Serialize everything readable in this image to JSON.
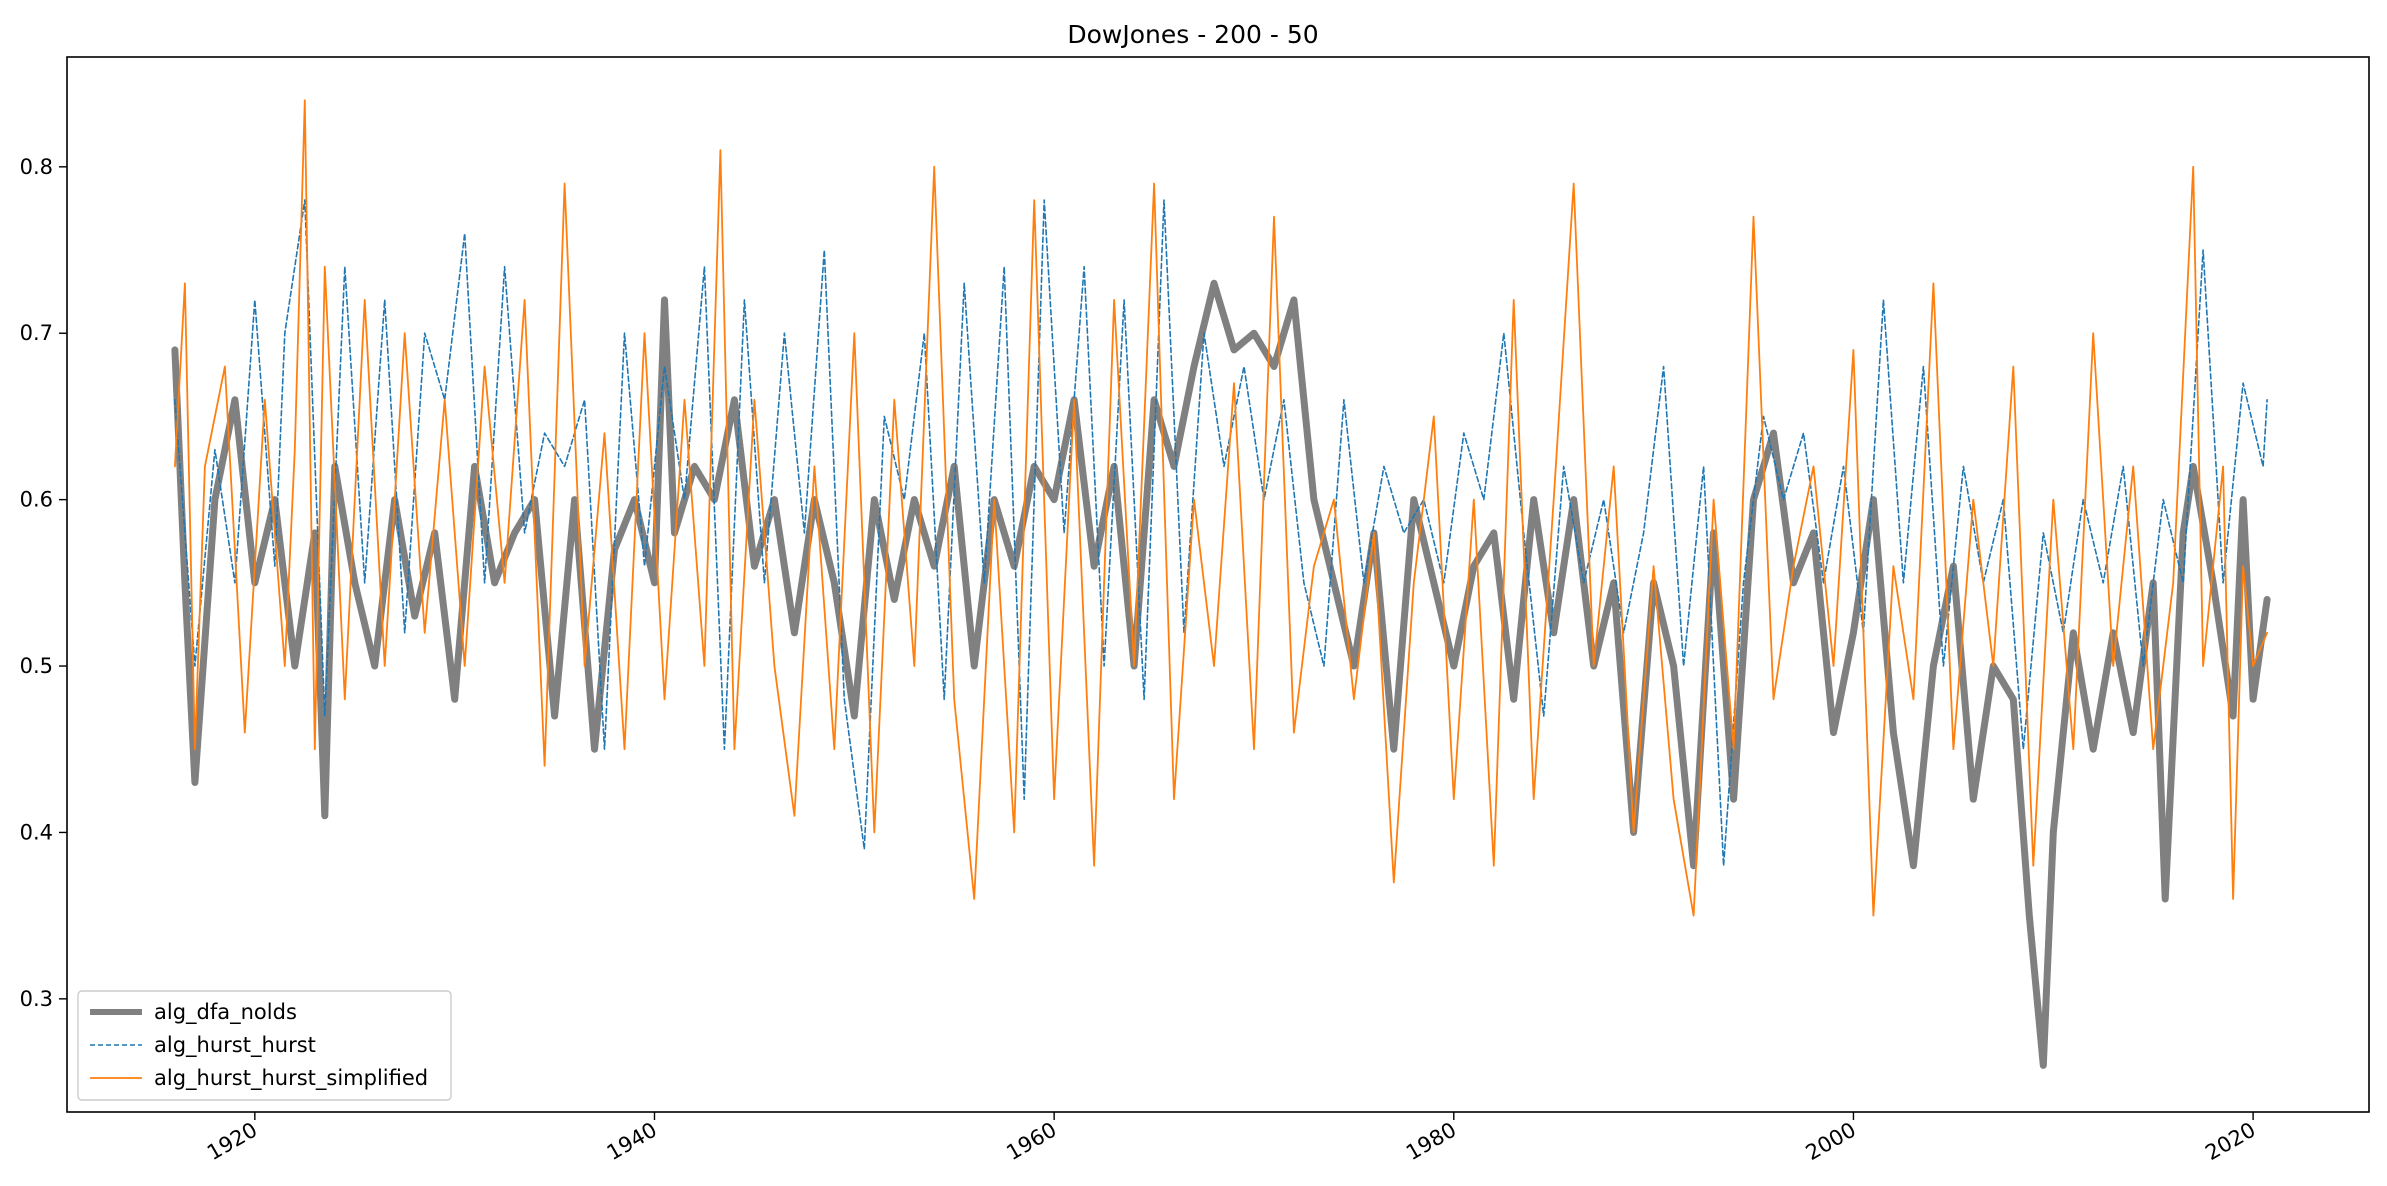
{
  "chart_data": {
    "type": "line",
    "title": "DowJones - 200 - 50",
    "xlabel": "",
    "ylabel": "",
    "xlim": [
      1910.6,
      2025.8
    ],
    "ylim": [
      0.232,
      0.866
    ],
    "x_ticks": [
      1920,
      1940,
      1960,
      1980,
      2000,
      2020
    ],
    "x_tick_labels": [
      "1920",
      "1940",
      "1960",
      "1980",
      "2000",
      "2020"
    ],
    "y_ticks": [
      0.3,
      0.4,
      0.5,
      0.6,
      0.7,
      0.8
    ],
    "y_tick_labels": [
      "0.3",
      "0.4",
      "0.5",
      "0.6",
      "0.7",
      "0.8"
    ],
    "grid": false,
    "legend": {
      "placement": "lower-left"
    },
    "series": [
      {
        "name": "alg_dfa_nolds",
        "color": "#808080",
        "style": "solid-thick",
        "x": [
          1916.0,
          1916.5,
          1917.0,
          1918.0,
          1919.0,
          1920.0,
          1921.0,
          1922.0,
          1923.0,
          1923.5,
          1924.0,
          1925.0,
          1926.0,
          1927.0,
          1928.0,
          1929.0,
          1930.0,
          1931.0,
          1932.0,
          1933.0,
          1934.0,
          1935.0,
          1936.0,
          1937.0,
          1938.0,
          1939.0,
          1940.0,
          1940.5,
          1941.0,
          1942.0,
          1943.0,
          1944.0,
          1945.0,
          1946.0,
          1947.0,
          1948.0,
          1949.0,
          1950.0,
          1951.0,
          1952.0,
          1953.0,
          1954.0,
          1955.0,
          1956.0,
          1957.0,
          1958.0,
          1959.0,
          1960.0,
          1961.0,
          1962.0,
          1963.0,
          1964.0,
          1965.0,
          1966.0,
          1967.0,
          1968.0,
          1969.0,
          1970.0,
          1971.0,
          1972.0,
          1973.0,
          1974.0,
          1975.0,
          1976.0,
          1977.0,
          1978.0,
          1979.0,
          1980.0,
          1981.0,
          1982.0,
          1983.0,
          1984.0,
          1985.0,
          1986.0,
          1987.0,
          1988.0,
          1989.0,
          1990.0,
          1991.0,
          1992.0,
          1993.0,
          1994.0,
          1995.0,
          1996.0,
          1997.0,
          1998.0,
          1999.0,
          2000.0,
          2001.0,
          2002.0,
          2003.0,
          2004.0,
          2005.0,
          2006.0,
          2007.0,
          2008.0,
          2008.8,
          2009.5,
          2010.0,
          2011.0,
          2012.0,
          2013.0,
          2014.0,
          2015.0,
          2015.6,
          2016.5,
          2017.0,
          2018.0,
          2019.0,
          2019.5,
          2020.0,
          2020.7
        ],
        "values": [
          0.69,
          0.55,
          0.43,
          0.6,
          0.66,
          0.55,
          0.6,
          0.5,
          0.58,
          0.41,
          0.62,
          0.55,
          0.5,
          0.6,
          0.53,
          0.58,
          0.48,
          0.62,
          0.55,
          0.58,
          0.6,
          0.47,
          0.6,
          0.45,
          0.57,
          0.6,
          0.55,
          0.72,
          0.58,
          0.62,
          0.6,
          0.66,
          0.56,
          0.6,
          0.52,
          0.6,
          0.55,
          0.47,
          0.6,
          0.54,
          0.6,
          0.56,
          0.62,
          0.5,
          0.6,
          0.56,
          0.62,
          0.6,
          0.66,
          0.56,
          0.62,
          0.5,
          0.66,
          0.62,
          0.68,
          0.73,
          0.69,
          0.7,
          0.68,
          0.72,
          0.6,
          0.55,
          0.5,
          0.58,
          0.45,
          0.6,
          0.55,
          0.5,
          0.56,
          0.58,
          0.48,
          0.6,
          0.52,
          0.6,
          0.5,
          0.55,
          0.4,
          0.55,
          0.5,
          0.38,
          0.58,
          0.42,
          0.6,
          0.64,
          0.55,
          0.58,
          0.46,
          0.52,
          0.6,
          0.46,
          0.38,
          0.5,
          0.56,
          0.42,
          0.5,
          0.48,
          0.35,
          0.26,
          0.4,
          0.52,
          0.45,
          0.52,
          0.46,
          0.55,
          0.36,
          0.58,
          0.62,
          0.55,
          0.47,
          0.6,
          0.48,
          0.54
        ]
      },
      {
        "name": "alg_hurst_hurst",
        "color": "#1f77b4",
        "style": "dashed",
        "x": [
          1916.0,
          1917.0,
          1918.0,
          1919.0,
          1920.0,
          1921.0,
          1921.5,
          1922.5,
          1923.5,
          1924.5,
          1925.5,
          1926.5,
          1927.5,
          1928.5,
          1929.5,
          1930.5,
          1931.5,
          1932.5,
          1933.5,
          1934.5,
          1935.5,
          1936.5,
          1937.5,
          1938.5,
          1939.5,
          1940.5,
          1941.5,
          1942.5,
          1943.5,
          1944.5,
          1945.5,
          1946.5,
          1947.5,
          1948.5,
          1949.5,
          1950.5,
          1951.5,
          1952.5,
          1953.5,
          1954.5,
          1955.5,
          1956.5,
          1957.5,
          1958.5,
          1959.5,
          1960.5,
          1961.5,
          1962.5,
          1963.5,
          1964.5,
          1965.5,
          1966.5,
          1967.5,
          1968.5,
          1969.5,
          1970.5,
          1971.5,
          1972.5,
          1973.5,
          1974.5,
          1975.5,
          1976.5,
          1977.5,
          1978.5,
          1979.5,
          1980.5,
          1981.5,
          1982.5,
          1983.5,
          1984.5,
          1985.5,
          1986.5,
          1987.5,
          1988.5,
          1989.5,
          1990.5,
          1991.5,
          1992.5,
          1993.5,
          1994.5,
          1995.5,
          1996.5,
          1997.5,
          1998.5,
          1999.5,
          2000.5,
          2001.5,
          2002.5,
          2003.5,
          2004.5,
          2005.5,
          2006.5,
          2007.5,
          2008.5,
          2009.5,
          2010.5,
          2011.5,
          2012.5,
          2013.5,
          2014.5,
          2015.5,
          2016.5,
          2017.5,
          2018.5,
          2019.5,
          2020.5,
          2020.7
        ],
        "values": [
          0.66,
          0.5,
          0.63,
          0.55,
          0.72,
          0.56,
          0.7,
          0.78,
          0.47,
          0.74,
          0.55,
          0.72,
          0.52,
          0.7,
          0.66,
          0.76,
          0.55,
          0.74,
          0.58,
          0.64,
          0.62,
          0.66,
          0.45,
          0.7,
          0.56,
          0.68,
          0.6,
          0.74,
          0.45,
          0.72,
          0.55,
          0.7,
          0.58,
          0.75,
          0.48,
          0.39,
          0.65,
          0.6,
          0.7,
          0.48,
          0.73,
          0.55,
          0.74,
          0.42,
          0.78,
          0.58,
          0.74,
          0.5,
          0.72,
          0.48,
          0.78,
          0.52,
          0.7,
          0.62,
          0.68,
          0.6,
          0.66,
          0.55,
          0.5,
          0.66,
          0.55,
          0.62,
          0.58,
          0.6,
          0.55,
          0.64,
          0.6,
          0.7,
          0.58,
          0.47,
          0.62,
          0.55,
          0.6,
          0.52,
          0.58,
          0.68,
          0.5,
          0.62,
          0.38,
          0.55,
          0.65,
          0.6,
          0.64,
          0.55,
          0.62,
          0.52,
          0.72,
          0.55,
          0.68,
          0.5,
          0.62,
          0.55,
          0.6,
          0.45,
          0.58,
          0.52,
          0.6,
          0.55,
          0.62,
          0.5,
          0.6,
          0.55,
          0.75,
          0.55,
          0.67,
          0.62,
          0.66
        ]
      },
      {
        "name": "alg_hurst_hurst_simplified",
        "color": "#ff7f0e",
        "style": "solid-thin",
        "x": [
          1916.0,
          1916.5,
          1917.0,
          1917.5,
          1918.5,
          1919.5,
          1920.5,
          1921.5,
          1922.0,
          1922.5,
          1923.0,
          1923.5,
          1924.5,
          1925.5,
          1926.5,
          1927.5,
          1928.5,
          1929.5,
          1930.5,
          1931.5,
          1932.5,
          1933.5,
          1934.5,
          1935.5,
          1936.5,
          1937.5,
          1938.5,
          1939.5,
          1940.5,
          1941.5,
          1942.5,
          1943.3,
          1944.0,
          1945.0,
          1946.0,
          1947.0,
          1948.0,
          1949.0,
          1950.0,
          1951.0,
          1952.0,
          1953.0,
          1954.0,
          1955.0,
          1956.0,
          1957.0,
          1958.0,
          1959.0,
          1960.0,
          1961.0,
          1962.0,
          1963.0,
          1964.0,
          1965.0,
          1966.0,
          1967.0,
          1968.0,
          1969.0,
          1970.0,
          1971.0,
          1972.0,
          1973.0,
          1974.0,
          1975.0,
          1976.0,
          1977.0,
          1978.0,
          1979.0,
          1980.0,
          1981.0,
          1982.0,
          1983.0,
          1984.0,
          1985.0,
          1986.0,
          1987.0,
          1988.0,
          1989.0,
          1990.0,
          1991.0,
          1992.0,
          1993.0,
          1994.0,
          1995.0,
          1996.0,
          1997.0,
          1998.0,
          1999.0,
          2000.0,
          2001.0,
          2002.0,
          2003.0,
          2004.0,
          2005.0,
          2006.0,
          2007.0,
          2008.0,
          2009.0,
          2010.0,
          2011.0,
          2012.0,
          2013.0,
          2014.0,
          2015.0,
          2016.0,
          2017.0,
          2017.5,
          2018.5,
          2019.0,
          2019.5,
          2020.0,
          2020.7
        ],
        "values": [
          0.62,
          0.73,
          0.45,
          0.62,
          0.68,
          0.46,
          0.66,
          0.5,
          0.63,
          0.84,
          0.45,
          0.74,
          0.48,
          0.72,
          0.5,
          0.7,
          0.52,
          0.66,
          0.5,
          0.68,
          0.55,
          0.72,
          0.44,
          0.79,
          0.5,
          0.64,
          0.45,
          0.7,
          0.48,
          0.66,
          0.5,
          0.81,
          0.45,
          0.66,
          0.5,
          0.41,
          0.62,
          0.45,
          0.7,
          0.4,
          0.66,
          0.5,
          0.8,
          0.48,
          0.36,
          0.6,
          0.4,
          0.78,
          0.42,
          0.66,
          0.38,
          0.72,
          0.5,
          0.79,
          0.42,
          0.6,
          0.5,
          0.67,
          0.45,
          0.77,
          0.46,
          0.56,
          0.6,
          0.48,
          0.58,
          0.37,
          0.55,
          0.65,
          0.42,
          0.6,
          0.38,
          0.72,
          0.42,
          0.6,
          0.79,
          0.5,
          0.62,
          0.4,
          0.56,
          0.42,
          0.35,
          0.6,
          0.45,
          0.77,
          0.48,
          0.56,
          0.62,
          0.5,
          0.69,
          0.35,
          0.56,
          0.48,
          0.73,
          0.45,
          0.6,
          0.5,
          0.68,
          0.38,
          0.6,
          0.45,
          0.7,
          0.5,
          0.62,
          0.45,
          0.55,
          0.8,
          0.5,
          0.62,
          0.36,
          0.56,
          0.5,
          0.52
        ]
      }
    ]
  }
}
